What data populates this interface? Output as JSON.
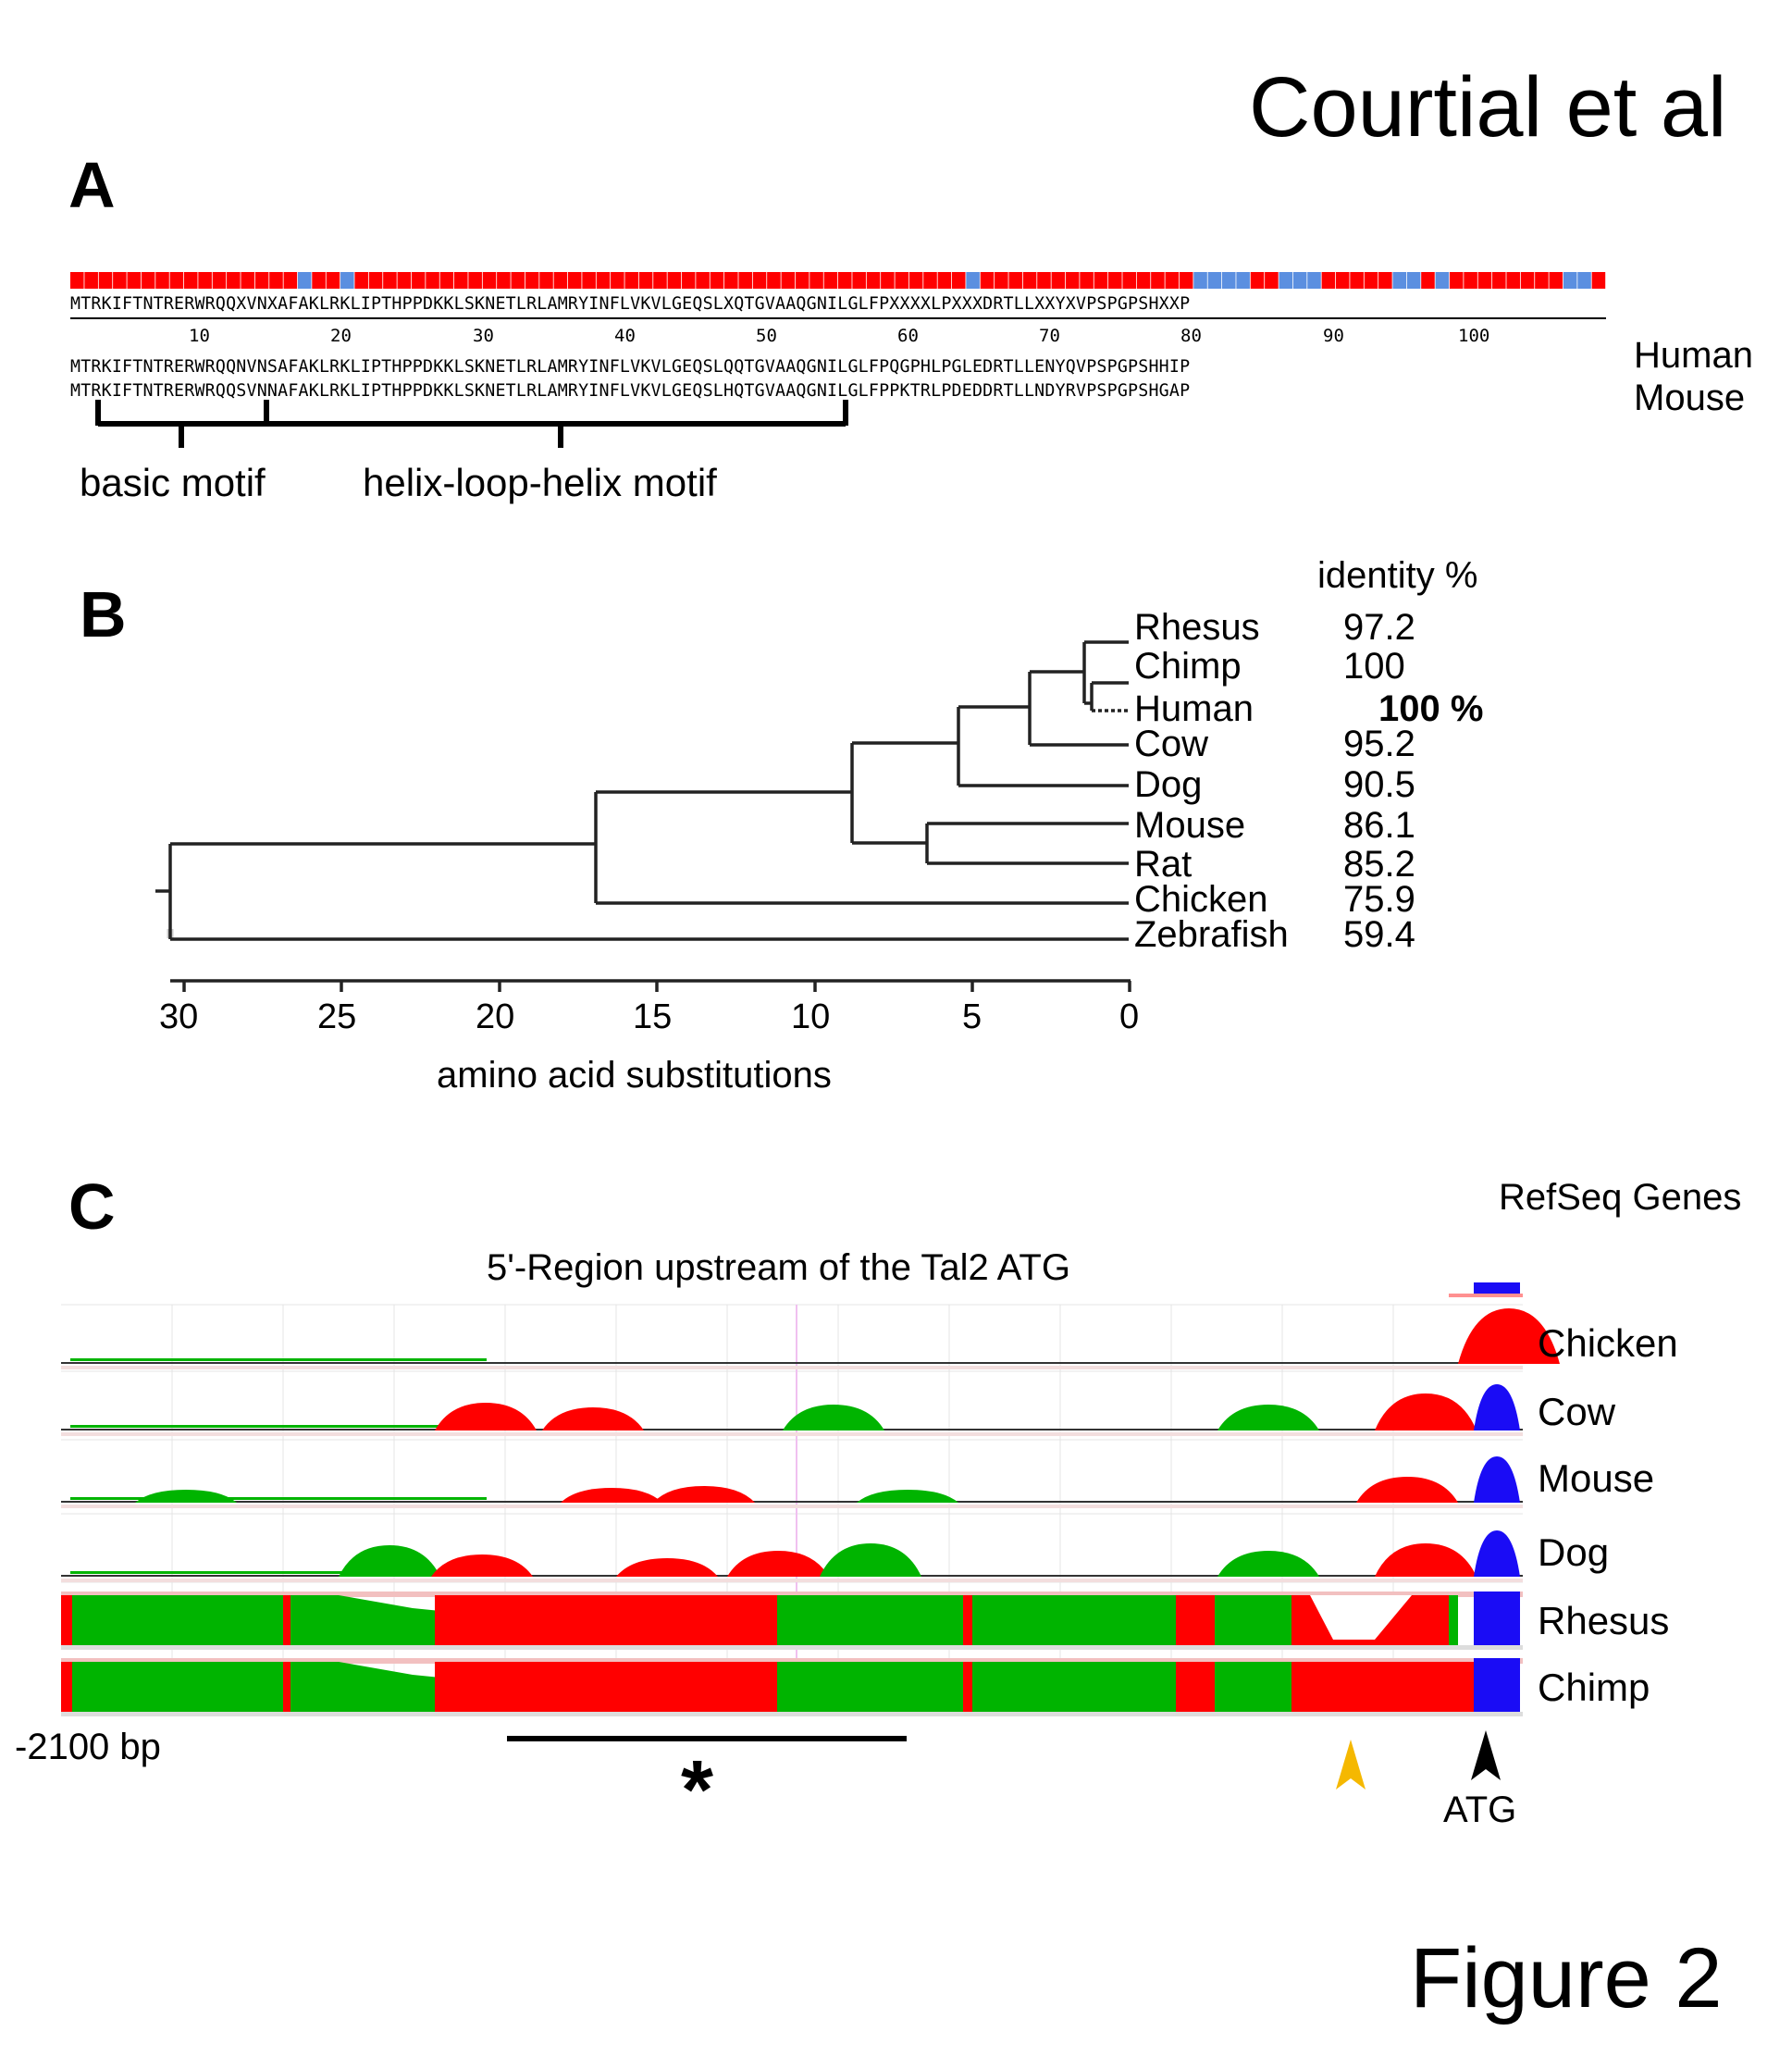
{
  "author": "Courtial et al",
  "figure_label": "Figure 2",
  "panelA": {
    "letter": "A",
    "consensus": "MTRKIFTNTRERWRQQXVNXAFAKLRKLIPTHPPDKKLSKNETLRLAMRYINFLVKVLGEQSLXQTGVAAQGNILGLFPXXXXLPXXXDRTLLXXYXVPSPGPSHXXP",
    "ruler": [
      "10",
      "20",
      "30",
      "40",
      "50",
      "60",
      "70",
      "80",
      "90",
      "100"
    ],
    "human_seq": "MTRKIFTNTRERWRQQNVNSAFAKLRKLIPTHPPDKKLSKNETLRLAMRYINFLVKVLGEQSLQQTGVAAQGNILGLFPQGPHLPGLEDRTLLENYQVPSPGPSHHIP",
    "mouse_seq": "MTRKIFTNTRERWRQQSVNNAFAKLRKLIPTHPPDKKLSKNETLRLAMRYINFLVKVLGEQSLHQTGVAAQGNILGLFPPKTRLPDEDDRTLLNDYRVPSPGPSHGAP",
    "human_label": "Human",
    "mouse_label": "Mouse",
    "motif1": "basic motif",
    "motif2": "helix-loop-helix motif",
    "colors": {
      "identical": "#ff0000",
      "different": "#5b8fe0"
    }
  },
  "panelB": {
    "letter": "B",
    "identity_header": "identity %",
    "xlabel": "amino acid substitutions",
    "ticks": [
      "30",
      "25",
      "20",
      "15",
      "10",
      "5",
      "0"
    ],
    "species": [
      {
        "name": "Rhesus",
        "identity": "97.2"
      },
      {
        "name": "Chimp",
        "identity": "100"
      },
      {
        "name": "Human",
        "identity": "100 %"
      },
      {
        "name": "Cow",
        "identity": "95.2"
      },
      {
        "name": "Dog",
        "identity": "90.5"
      },
      {
        "name": "Mouse",
        "identity": "86.1"
      },
      {
        "name": "Rat",
        "identity": "85.2"
      },
      {
        "name": "Chicken",
        "identity": "75.9"
      },
      {
        "name": "Zebrafish",
        "identity": "59.4"
      }
    ]
  },
  "panelC": {
    "letter": "C",
    "refseq": "RefSeq Genes",
    "title": "5'-Region upstream of the Tal2 ATG",
    "tracks": [
      "Chicken",
      "Cow",
      "Mouse",
      "Dog",
      "Rhesus",
      "Chimp"
    ],
    "left_label": "-2100 bp",
    "atg_label": "ATG",
    "asterisk": "*",
    "colors": {
      "conserved_noncoding": "#ff0000",
      "conserved_other": "#00b400",
      "exon": "#1a0cf5",
      "arrow_yellow": "#f5b800"
    }
  }
}
